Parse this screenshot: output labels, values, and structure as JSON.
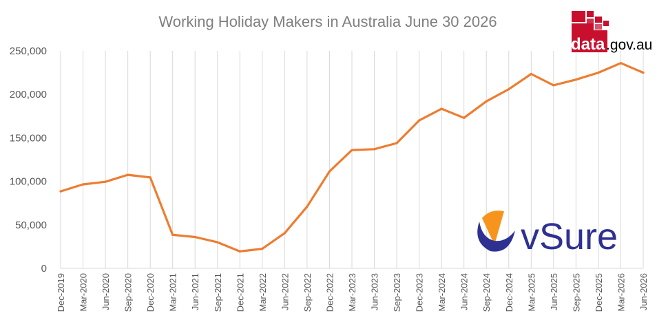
{
  "colors": {
    "line": "#ED7D31",
    "grid": "#D9D9D9",
    "axis_text": "#595959",
    "title_text": "#7F7F7F",
    "data_gov_red": "#C8102E",
    "vsure_orange": "#F7941D",
    "vsure_navy": "#2E3192"
  },
  "logos": {
    "data_gov": {
      "word_data": "data",
      "word_gov": ".gov.au"
    },
    "vsure": {
      "text": "vSure"
    }
  },
  "chart_data": {
    "type": "line",
    "title": "Working Holiday Makers in Australia  June 30 2026",
    "xlabel": "",
    "ylabel": "",
    "ylim": [
      0,
      250000
    ],
    "y_ticks": [
      0,
      50000,
      100000,
      150000,
      200000,
      250000
    ],
    "y_tick_labels": [
      "0",
      "50,000",
      "100,000",
      "150,000",
      "200,000",
      "250,000"
    ],
    "grid": "vertical",
    "legend": "none",
    "categories": [
      "Dec-2019",
      "Mar-2020",
      "Jun-2020",
      "Sep-2020",
      "Dec-2020",
      "Mar-2021",
      "Jun-2021",
      "Sep-2021",
      "Dec-2021",
      "Mar-2022",
      "Jun-2022",
      "Sep-2022",
      "Dec-2022",
      "Mar-2023",
      "Jun-2023",
      "Sep-2023",
      "Dec-2023",
      "Mar-2024",
      "Jun-2024",
      "Sep-2024",
      "Dec-2024",
      "Mar-2025",
      "Jun-2025",
      "Sep-2025",
      "Dec-2025",
      "Mar-2026",
      "Jun-2026"
    ],
    "series": [
      {
        "values": [
          88500,
          96500,
          99500,
          107500,
          104500,
          38500,
          36000,
          30000,
          19500,
          22500,
          40500,
          71000,
          111500,
          136000,
          137000,
          144000,
          170000,
          183500,
          173000,
          192000,
          206000,
          223500,
          210500,
          217000,
          225000,
          236000,
          225000
        ]
      }
    ]
  }
}
